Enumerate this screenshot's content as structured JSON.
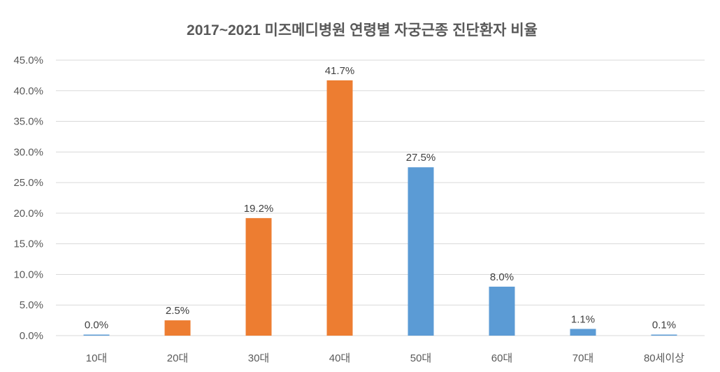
{
  "chart_data": {
    "type": "bar",
    "title": "2017~2021 미즈메디병원 연령별 자궁근종 진단환자 비율",
    "xlabel": "",
    "ylabel": "",
    "categories": [
      "10대",
      "20대",
      "30대",
      "40대",
      "50대",
      "60대",
      "70대",
      "80세이상"
    ],
    "values": [
      0.0,
      2.5,
      19.2,
      41.7,
      27.5,
      8.0,
      1.1,
      0.1
    ],
    "data_labels": [
      "0.0%",
      "2.5%",
      "19.2%",
      "41.7%",
      "27.5%",
      "8.0%",
      "1.1%",
      "0.1%"
    ],
    "bar_colors": [
      "#5B9BD5",
      "#ED7D31",
      "#ED7D31",
      "#ED7D31",
      "#5B9BD5",
      "#5B9BD5",
      "#5B9BD5",
      "#5B9BD5"
    ],
    "ylim": [
      0,
      45
    ],
    "yticks": [
      0,
      5,
      10,
      15,
      20,
      25,
      30,
      35,
      40,
      45
    ],
    "ytick_labels": [
      "0.0%",
      "5.0%",
      "10.0%",
      "15.0%",
      "20.0%",
      "25.0%",
      "30.0%",
      "35.0%",
      "40.0%",
      "45.0%"
    ],
    "grid": true,
    "legend": "none"
  }
}
